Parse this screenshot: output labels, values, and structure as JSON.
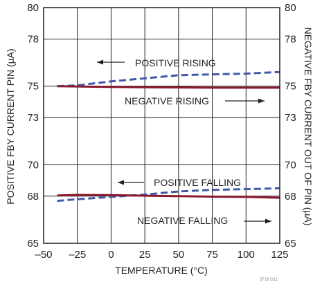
{
  "chart_data": {
    "type": "line",
    "xlabel": "TEMPERATURE (°C)",
    "ylabel_left": "POSITIVE FBY CURRENT PIN (µA)",
    "ylabel_right": "NEGATIVE FBY CURRENT OUT OF PIN (µA)",
    "xlim": [
      -50,
      125
    ],
    "ylim": [
      65,
      80
    ],
    "x_ticks": [
      -50,
      -25,
      0,
      25,
      50,
      75,
      100,
      125
    ],
    "x_tick_labels": [
      "–50",
      "–25",
      "0",
      "25",
      "50",
      "75",
      "100",
      "125"
    ],
    "y_ticks": [
      65,
      68,
      70,
      73,
      75,
      78,
      80
    ],
    "y_tick_labels": [
      "65",
      "68",
      "70",
      "73",
      "75",
      "78",
      "80"
    ],
    "grid": true,
    "series": [
      {
        "name": "POSITIVE RISING",
        "style": "dashed",
        "color": "#3f5aa6",
        "x": [
          -40,
          -25,
          0,
          25,
          50,
          75,
          100,
          125
        ],
        "y": [
          75.0,
          75.05,
          75.3,
          75.5,
          75.7,
          75.75,
          75.8,
          75.9
        ]
      },
      {
        "name": "NEGATIVE RISING",
        "style": "solid",
        "color": "#8b1a2f",
        "x": [
          -40,
          -25,
          0,
          25,
          50,
          75,
          100,
          125
        ],
        "y": [
          75.0,
          74.98,
          74.95,
          74.93,
          74.92,
          74.9,
          74.9,
          74.9
        ]
      },
      {
        "name": "POSITIVE FALLING",
        "style": "dashed",
        "color": "#3f5aa6",
        "x": [
          -40,
          -25,
          0,
          25,
          50,
          75,
          100,
          125
        ],
        "y": [
          67.7,
          67.8,
          67.95,
          68.1,
          68.3,
          68.4,
          68.45,
          68.5
        ]
      },
      {
        "name": "NEGATIVE FALLING",
        "style": "solid",
        "color": "#8b1a2f",
        "x": [
          -40,
          -25,
          0,
          25,
          50,
          75,
          100,
          125
        ],
        "y": [
          68.05,
          68.08,
          68.07,
          68.03,
          68.0,
          67.97,
          67.95,
          67.9
        ]
      }
    ],
    "annotations": [
      {
        "text": "POSITIVE RISING",
        "arrow": "left"
      },
      {
        "text": "NEGATIVE RISING",
        "arrow": "right"
      },
      {
        "text": "POSITIVE FALLING",
        "arrow": "left"
      },
      {
        "text": "NEGATIVE FALLING",
        "arrow": "right"
      }
    ],
    "code": "3728 G11"
  }
}
